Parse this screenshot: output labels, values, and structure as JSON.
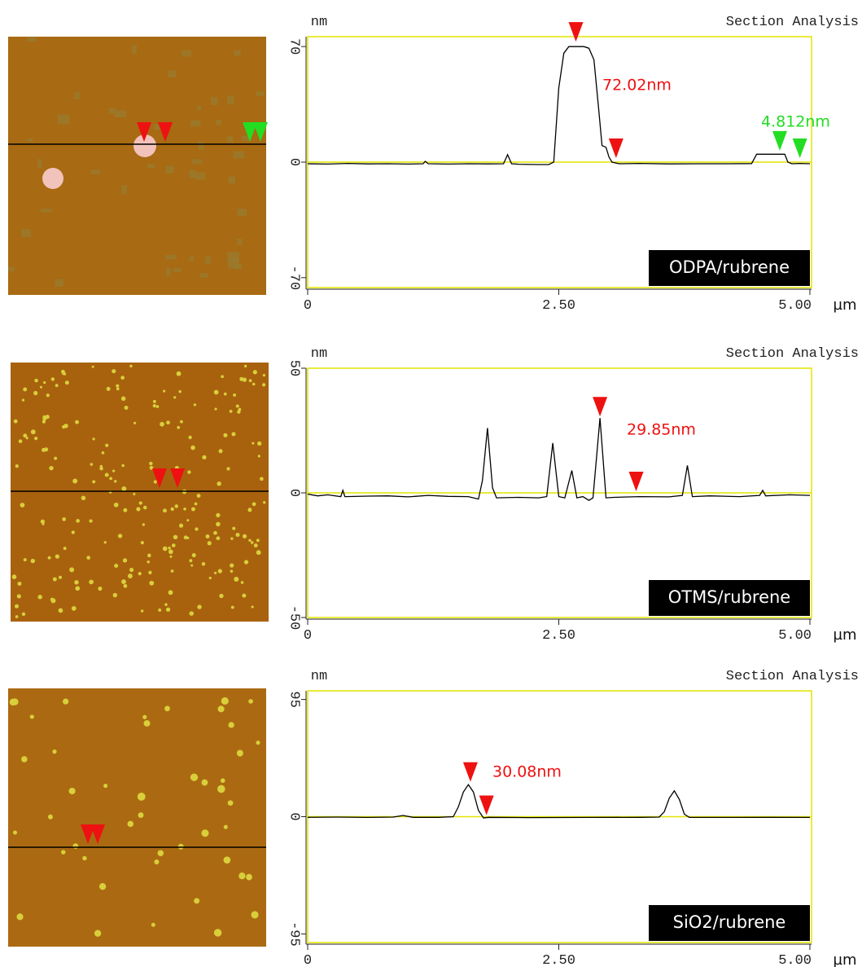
{
  "chart_data": [
    {
      "type": "line",
      "title": "Section Analysis",
      "y_unit": "nm",
      "x_unit": "µm",
      "label": "ODPA/rubrene",
      "xlim": [
        0,
        5
      ],
      "ylim": [
        -76,
        76
      ],
      "xticks": [
        0,
        {
          "value": 2.5,
          "label": "2.50"
        },
        {
          "value": 5,
          "label": "5.00"
        }
      ],
      "yticks": [
        70,
        0,
        -70
      ],
      "zero_line": true,
      "color": "#000000",
      "x": [
        0,
        0.2,
        0.4,
        0.6,
        0.8,
        1.0,
        1.15,
        1.17,
        1.2,
        1.4,
        1.6,
        1.8,
        1.95,
        1.99,
        2.03,
        2.1,
        2.3,
        2.4,
        2.45,
        2.5,
        2.55,
        2.6,
        2.65,
        2.75,
        2.8,
        2.85,
        2.9,
        2.93,
        2.97,
        3.0,
        3.03,
        3.1,
        3.3,
        3.6,
        3.9,
        4.2,
        4.42,
        4.47,
        4.6,
        4.75,
        4.78,
        4.82,
        4.9,
        5.0
      ],
      "values": [
        -1,
        -1.2,
        -0.8,
        -1.1,
        -1,
        -1.2,
        -1,
        0.5,
        -1,
        -1.2,
        -1,
        -1.1,
        -1,
        4.5,
        -1,
        -1.3,
        -1.5,
        -1.5,
        0,
        45,
        66,
        70,
        70,
        70,
        69,
        62,
        30,
        10,
        9,
        3,
        0,
        -1,
        -0.8,
        -1.1,
        -1,
        -1,
        -0.9,
        4.8,
        4.8,
        4.8,
        0,
        -1,
        -0.8,
        -1
      ],
      "cursors": [
        {
          "x": 2.67,
          "y": 72,
          "color": "#ee1111"
        },
        {
          "x": 3.07,
          "y": 1.5,
          "color": "#ee1111"
        },
        {
          "x": 4.7,
          "y": 6,
          "color": "#22dd22"
        },
        {
          "x": 4.9,
          "y": 1.5,
          "color": "#22dd22"
        }
      ],
      "annotations": [
        {
          "text": "72.02nm",
          "color": "#ee1111"
        },
        {
          "text": "4.812nm",
          "color": "#22dd22"
        }
      ]
    },
    {
      "type": "line",
      "title": "Section Analysis",
      "y_unit": "nm",
      "x_unit": "µm",
      "label": "OTMS/rubrene",
      "xlim": [
        0,
        5
      ],
      "ylim": [
        -50,
        50
      ],
      "xticks": [
        0,
        {
          "value": 2.5,
          "label": "2.50"
        },
        {
          "value": 5,
          "label": "5.00"
        }
      ],
      "yticks": [
        50,
        0,
        -50
      ],
      "zero_line": true,
      "color": "#000000",
      "x": [
        0,
        0.1,
        0.2,
        0.33,
        0.35,
        0.37,
        0.6,
        0.8,
        1.0,
        1.2,
        1.4,
        1.6,
        1.7,
        1.74,
        1.79,
        1.84,
        1.88,
        2.1,
        2.3,
        2.38,
        2.44,
        2.5,
        2.56,
        2.63,
        2.68,
        2.74,
        2.8,
        2.84,
        2.91,
        2.97,
        3.05,
        3.3,
        3.6,
        3.73,
        3.78,
        3.83,
        4.0,
        4.3,
        4.5,
        4.53,
        4.56,
        4.8,
        5.0
      ],
      "values": [
        -0.5,
        -1.2,
        -0.8,
        -1.5,
        1,
        -1.5,
        -1.3,
        -1.2,
        -1.6,
        -1,
        -1.4,
        -1.5,
        -2.5,
        5,
        26,
        2,
        -2,
        -1.8,
        -2,
        -1.5,
        20,
        -1.5,
        -2,
        9,
        -2,
        -1.5,
        -3,
        -2,
        30,
        -2,
        -1.8,
        -1.5,
        -1.6,
        -1,
        11,
        -1.5,
        -1.2,
        -1.5,
        -1,
        1,
        -1.2,
        -0.8,
        -1
      ],
      "cursors": [
        {
          "x": 2.91,
          "y": 30,
          "color": "#ee1111"
        },
        {
          "x": 3.27,
          "y": 0,
          "color": "#ee1111"
        }
      ],
      "annotations": [
        {
          "text": "29.85nm",
          "color": "#ee1111"
        }
      ]
    },
    {
      "type": "line",
      "title": "Section Analysis",
      "y_unit": "nm",
      "x_unit": "µm",
      "label": "SiO2/rubrene",
      "xlim": [
        0,
        5
      ],
      "ylim": [
        -102,
        102
      ],
      "xticks": [
        0,
        {
          "value": 2.5,
          "label": "2.50"
        },
        {
          "value": 5,
          "label": "5.00"
        }
      ],
      "yticks": [
        95,
        0,
        -95
      ],
      "zero_line": true,
      "color": "#000000",
      "x": [
        0,
        0.3,
        0.6,
        0.85,
        0.95,
        1.05,
        1.3,
        1.45,
        1.5,
        1.55,
        1.6,
        1.65,
        1.7,
        1.75,
        1.8,
        2.2,
        2.8,
        3.3,
        3.5,
        3.55,
        3.6,
        3.65,
        3.7,
        3.75,
        3.8,
        4.2,
        4.6,
        5.0
      ],
      "values": [
        -0.5,
        -0.3,
        -0.6,
        -0.3,
        1,
        -0.5,
        -0.5,
        0,
        8,
        20,
        26,
        20,
        5,
        -1,
        -0.5,
        -0.7,
        -0.6,
        -0.5,
        -0.3,
        4,
        15,
        21,
        14,
        2,
        -0.5,
        -0.6,
        -0.5,
        -0.6
      ],
      "cursors": [
        {
          "x": 1.62,
          "y": 27,
          "color": "#ee1111"
        },
        {
          "x": 1.78,
          "y": 0,
          "color": "#ee1111"
        }
      ],
      "annotations": [
        {
          "text": "30.08nm",
          "color": "#ee1111"
        }
      ]
    }
  ]
}
